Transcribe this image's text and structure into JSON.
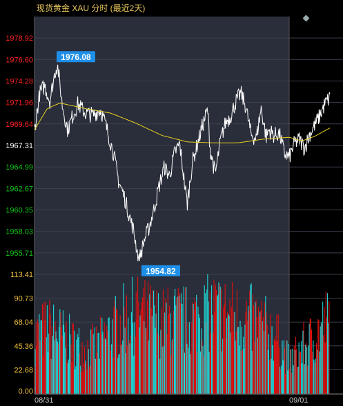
{
  "header": {
    "title": "现货黄金 XAU 分时 (最近2天)"
  },
  "colors": {
    "up": "#ff2222",
    "down": "#12c418",
    "volume_up": "#e01010",
    "volume_down": "#20d8d8",
    "price_line": "#ffffff",
    "average_line": "#e8d020",
    "panel_bg": "#2a2e3a",
    "volume_axis": "#f0c040"
  },
  "chart_data": [
    {
      "type": "line",
      "title": "现货黄金 XAU 分时 (最近2天)",
      "x_labels": [
        "08/31",
        "09/01"
      ],
      "ylim": [
        1953.39,
        1981.24
      ],
      "reference_price": 1967.31,
      "y_ticks": [
        "1978.92",
        "1976.60",
        "1974.28",
        "1971.96",
        "1969.64",
        "1967.31",
        "1964.99",
        "1962.67",
        "1960.35",
        "1958.03",
        "1955.71"
      ],
      "high": {
        "label": "1976.08",
        "value": 1976.08
      },
      "low": {
        "label": "1954.82",
        "value": 1954.82
      },
      "price_keypoints": [
        [
          0,
          1969.0
        ],
        [
          0.02,
          1972.9
        ],
        [
          0.04,
          1973.8
        ],
        [
          0.06,
          1972.1
        ],
        [
          0.08,
          1975.2
        ],
        [
          0.09,
          1976.08
        ],
        [
          0.11,
          1971.5
        ],
        [
          0.13,
          1969.0
        ],
        [
          0.15,
          1970.5
        ],
        [
          0.17,
          1971.8
        ],
        [
          0.2,
          1970.8
        ],
        [
          0.23,
          1970.6
        ],
        [
          0.26,
          1971.2
        ],
        [
          0.28,
          1969.5
        ],
        [
          0.31,
          1966.5
        ],
        [
          0.33,
          1963.5
        ],
        [
          0.35,
          1962.0
        ],
        [
          0.37,
          1960.0
        ],
        [
          0.39,
          1958.0
        ],
        [
          0.41,
          1954.82
        ],
        [
          0.43,
          1957.0
        ],
        [
          0.45,
          1958.5
        ],
        [
          0.47,
          1960.5
        ],
        [
          0.49,
          1963.0
        ],
        [
          0.51,
          1965.0
        ],
        [
          0.53,
          1964.0
        ],
        [
          0.55,
          1966.5
        ],
        [
          0.57,
          1967.5
        ],
        [
          0.59,
          1963.0
        ],
        [
          0.6,
          1961.0
        ],
        [
          0.62,
          1965.5
        ],
        [
          0.64,
          1967.5
        ],
        [
          0.66,
          1969.5
        ],
        [
          0.68,
          1971.2
        ],
        [
          0.69,
          1966.8
        ],
        [
          0.71,
          1964.2
        ],
        [
          0.73,
          1967.8
        ],
        [
          0.75,
          1969.8
        ],
        [
          0.77,
          1970.5
        ],
        [
          0.79,
          1972.0
        ],
        [
          0.81,
          1973.0
        ],
        [
          0.83,
          1971.5
        ],
        [
          0.85,
          1968.5
        ],
        [
          0.87,
          1968.0
        ],
        [
          0.89,
          1971.3
        ],
        [
          0.91,
          1968.2
        ],
        [
          0.92,
          1969.0
        ],
        [
          0.94,
          1968.4
        ],
        [
          0.96,
          1968.6
        ],
        [
          0.97,
          1967.8
        ],
        [
          0.98,
          1966.5
        ],
        [
          1.0,
          1966.0
        ],
        [
          1.02,
          1967.5
        ],
        [
          1.04,
          1968.0
        ],
        [
          1.06,
          1967.0
        ],
        [
          1.08,
          1968.5
        ],
        [
          1.1,
          1969.5
        ],
        [
          1.12,
          1970.5
        ],
        [
          1.14,
          1971.8
        ],
        [
          1.16,
          1972.5
        ]
      ],
      "average_keypoints": [
        [
          0,
          1969.0
        ],
        [
          0.05,
          1971.3
        ],
        [
          0.1,
          1971.9
        ],
        [
          0.2,
          1971.3
        ],
        [
          0.3,
          1970.8
        ],
        [
          0.4,
          1969.7
        ],
        [
          0.5,
          1968.4
        ],
        [
          0.6,
          1967.7
        ],
        [
          0.7,
          1967.6
        ],
        [
          0.8,
          1967.6
        ],
        [
          0.9,
          1968.0
        ],
        [
          1.0,
          1968.2
        ],
        [
          1.05,
          1967.8
        ],
        [
          1.1,
          1968.3
        ],
        [
          1.16,
          1969.2
        ]
      ]
    },
    {
      "type": "bar",
      "title": "volume",
      "y_ticks": [
        "113.41",
        "90.73",
        "68.04",
        "45.36",
        "22.68",
        "0.00"
      ],
      "ylim": [
        0,
        113.41
      ],
      "volume_keypoints": [
        [
          0,
          74
        ],
        [
          0.05,
          86
        ],
        [
          0.1,
          78
        ],
        [
          0.15,
          66
        ],
        [
          0.2,
          57
        ],
        [
          0.25,
          64
        ],
        [
          0.3,
          82
        ],
        [
          0.35,
          96
        ],
        [
          0.4,
          104
        ],
        [
          0.45,
          100
        ],
        [
          0.5,
          93
        ],
        [
          0.55,
          97
        ],
        [
          0.6,
          95
        ],
        [
          0.65,
          100
        ],
        [
          0.7,
          108
        ],
        [
          0.75,
          104
        ],
        [
          0.8,
          98
        ],
        [
          0.85,
          96
        ],
        [
          0.9,
          88
        ],
        [
          0.95,
          74
        ],
        [
          1.0,
          42
        ],
        [
          1.05,
          60
        ],
        [
          1.1,
          74
        ],
        [
          1.14,
          92
        ],
        [
          1.16,
          95
        ]
      ]
    }
  ]
}
